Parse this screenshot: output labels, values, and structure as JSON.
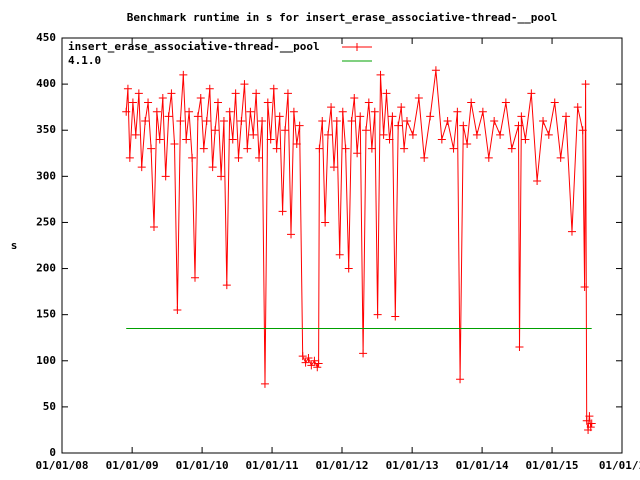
{
  "chart_data": {
    "type": "line",
    "title": "Benchmark runtime in s for insert_erase_associative-thread-__pool",
    "y_label": "s",
    "xlim": [
      "2008-01-01",
      "2016-01-01"
    ],
    "xticks": [
      {
        "value": "2008-01-01",
        "label": "01/01/08"
      },
      {
        "value": "2009-01-01",
        "label": "01/01/09"
      },
      {
        "value": "2010-01-01",
        "label": "01/01/10"
      },
      {
        "value": "2011-01-01",
        "label": "01/01/11"
      },
      {
        "value": "2012-01-01",
        "label": "01/01/12"
      },
      {
        "value": "2013-01-01",
        "label": "01/01/13"
      },
      {
        "value": "2014-01-01",
        "label": "01/01/14"
      },
      {
        "value": "2015-01-01",
        "label": "01/01/15"
      },
      {
        "value": "2016-01-01",
        "label": "01/01/1"
      }
    ],
    "ylim": [
      0,
      450
    ],
    "yticks": [
      0,
      50,
      100,
      150,
      200,
      250,
      300,
      350,
      400,
      450
    ],
    "grid": false,
    "legend": "top-left",
    "series": [
      {
        "name": "insert_erase_associative-thread-__pool",
        "color": "#ff0000",
        "marker": "+",
        "x": [
          "2008-12-01",
          "2008-12-10",
          "2008-12-20",
          "2009-01-05",
          "2009-01-20",
          "2009-02-05",
          "2009-02-20",
          "2009-03-10",
          "2009-03-25",
          "2009-04-10",
          "2009-04-25",
          "2009-05-10",
          "2009-05-25",
          "2009-06-10",
          "2009-06-25",
          "2009-07-10",
          "2009-07-25",
          "2009-08-10",
          "2009-08-25",
          "2009-09-10",
          "2009-09-25",
          "2009-10-10",
          "2009-10-25",
          "2009-11-10",
          "2009-11-25",
          "2009-12-10",
          "2009-12-25",
          "2010-01-10",
          "2010-01-25",
          "2010-02-10",
          "2010-02-25",
          "2010-03-10",
          "2010-03-25",
          "2010-04-10",
          "2010-04-25",
          "2010-05-10",
          "2010-05-25",
          "2010-06-10",
          "2010-06-25",
          "2010-07-10",
          "2010-07-25",
          "2010-08-10",
          "2010-08-25",
          "2010-09-10",
          "2010-09-25",
          "2010-10-10",
          "2010-10-25",
          "2010-11-10",
          "2010-11-25",
          "2010-12-10",
          "2010-12-25",
          "2011-01-10",
          "2011-01-25",
          "2011-02-10",
          "2011-02-25",
          "2011-03-10",
          "2011-03-25",
          "2011-04-10",
          "2011-04-25",
          "2011-05-10",
          "2011-05-25",
          "2011-06-10",
          "2011-06-25",
          "2011-07-10",
          "2011-07-25",
          "2011-08-10",
          "2011-08-25",
          "2011-09-01",
          "2011-09-05",
          "2011-09-20",
          "2011-10-05",
          "2011-10-20",
          "2011-11-05",
          "2011-11-20",
          "2011-12-05",
          "2011-12-20",
          "2012-01-05",
          "2012-01-20",
          "2012-02-05",
          "2012-02-20",
          "2012-03-05",
          "2012-03-20",
          "2012-04-05",
          "2012-04-20",
          "2012-05-05",
          "2012-05-20",
          "2012-06-05",
          "2012-06-20",
          "2012-07-05",
          "2012-07-20",
          "2012-08-05",
          "2012-08-20",
          "2012-09-05",
          "2012-09-20",
          "2012-10-05",
          "2012-10-20",
          "2012-11-05",
          "2012-11-20",
          "2012-12-05",
          "2013-01-05",
          "2013-02-05",
          "2013-03-05",
          "2013-04-05",
          "2013-05-05",
          "2013-06-05",
          "2013-07-05",
          "2013-08-05",
          "2013-08-25",
          "2013-09-08",
          "2013-09-25",
          "2013-10-15",
          "2013-11-05",
          "2013-12-05",
          "2014-01-05",
          "2014-02-05",
          "2014-03-05",
          "2014-04-05",
          "2014-05-05",
          "2014-06-05",
          "2014-07-10",
          "2014-07-15",
          "2014-07-25",
          "2014-08-15",
          "2014-09-15",
          "2014-10-15",
          "2014-11-15",
          "2014-12-15",
          "2015-01-15",
          "2015-02-15",
          "2015-03-15",
          "2015-04-15",
          "2015-05-15",
          "2015-06-10",
          "2015-06-20",
          "2015-06-25",
          "2015-07-01",
          "2015-07-08",
          "2015-07-15",
          "2015-07-22",
          "2015-07-27"
        ],
        "values": [
          370,
          395,
          320,
          380,
          345,
          390,
          310,
          360,
          380,
          330,
          245,
          370,
          340,
          385,
          300,
          365,
          390,
          335,
          155,
          360,
          410,
          340,
          370,
          320,
          190,
          365,
          385,
          330,
          360,
          395,
          310,
          350,
          380,
          300,
          360,
          182,
          370,
          340,
          390,
          320,
          360,
          400,
          330,
          370,
          345,
          390,
          320,
          360,
          75,
          380,
          340,
          395,
          330,
          365,
          262,
          350,
          390,
          237,
          370,
          335,
          355,
          105,
          98,
          103,
          95,
          100,
          93,
          97,
          330,
          360,
          250,
          345,
          375,
          310,
          360,
          215,
          370,
          330,
          200,
          360,
          385,
          325,
          365,
          108,
          350,
          380,
          330,
          370,
          150,
          410,
          345,
          390,
          340,
          365,
          148,
          355,
          375,
          330,
          360,
          345,
          385,
          320,
          365,
          415,
          340,
          360,
          330,
          370,
          80,
          355,
          335,
          380,
          345,
          370,
          320,
          360,
          345,
          380,
          330,
          355,
          115,
          365,
          340,
          390,
          295,
          360,
          345,
          380,
          320,
          365,
          240,
          375,
          350,
          180,
          400,
          35,
          25,
          40,
          28,
          32
        ]
      },
      {
        "name": "4.1.0",
        "color": "#00a000",
        "x": [
          "2008-12-01",
          "2015-07-27"
        ],
        "values": [
          135,
          135
        ]
      }
    ]
  }
}
